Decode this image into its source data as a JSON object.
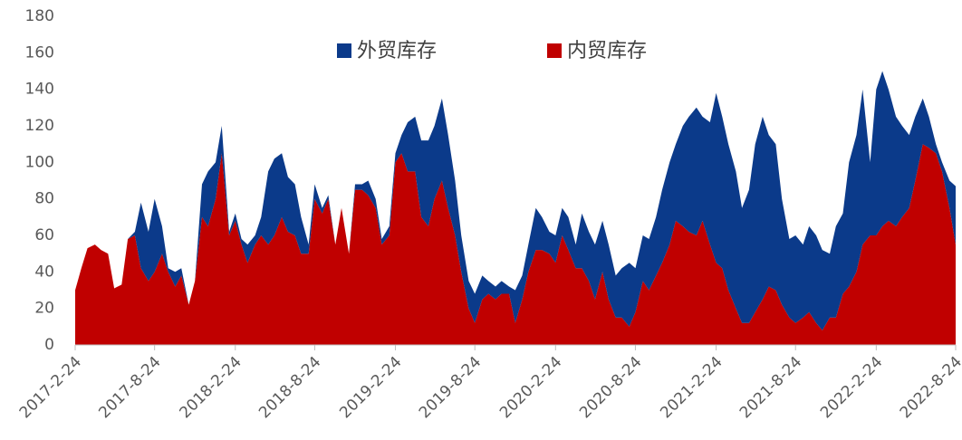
{
  "chart_data": {
    "type": "stacked_area",
    "x": [
      "2017-2-24",
      "2017-3-10",
      "2017-3-24",
      "2017-4-10",
      "2017-4-24",
      "2017-5-10",
      "2017-5-24",
      "2017-6-10",
      "2017-6-24",
      "2017-7-10",
      "2017-7-24",
      "2017-8-10",
      "2017-8-24",
      "2017-9-10",
      "2017-9-24",
      "2017-10-10",
      "2017-10-24",
      "2017-11-10",
      "2017-11-24",
      "2017-12-10",
      "2017-12-24",
      "2018-1-10",
      "2018-1-24",
      "2018-2-10",
      "2018-2-24",
      "2018-3-10",
      "2018-3-24",
      "2018-4-10",
      "2018-4-24",
      "2018-5-10",
      "2018-5-24",
      "2018-6-10",
      "2018-6-24",
      "2018-7-10",
      "2018-7-24",
      "2018-8-10",
      "2018-8-24",
      "2018-9-10",
      "2018-9-24",
      "2018-10-10",
      "2018-10-24",
      "2018-11-10",
      "2018-11-24",
      "2018-12-10",
      "2018-12-24",
      "2019-1-10",
      "2019-1-24",
      "2019-2-10",
      "2019-2-24",
      "2019-3-10",
      "2019-3-24",
      "2019-4-10",
      "2019-4-24",
      "2019-5-10",
      "2019-5-24",
      "2019-6-10",
      "2019-6-24",
      "2019-7-10",
      "2019-7-24",
      "2019-8-10",
      "2019-8-24",
      "2019-9-10",
      "2019-9-24",
      "2019-10-10",
      "2019-10-24",
      "2019-11-10",
      "2019-11-24",
      "2019-12-10",
      "2019-12-24",
      "2020-1-10",
      "2020-1-24",
      "2020-2-10",
      "2020-2-24",
      "2020-3-10",
      "2020-3-24",
      "2020-4-10",
      "2020-4-24",
      "2020-5-10",
      "2020-5-24",
      "2020-6-10",
      "2020-6-24",
      "2020-7-10",
      "2020-7-24",
      "2020-8-10",
      "2020-8-24",
      "2020-9-10",
      "2020-9-24",
      "2020-10-10",
      "2020-10-24",
      "2020-11-10",
      "2020-11-24",
      "2020-12-10",
      "2020-12-24",
      "2021-1-10",
      "2021-1-24",
      "2021-2-10",
      "2021-2-24",
      "2021-3-10",
      "2021-3-24",
      "2021-4-10",
      "2021-4-24",
      "2021-5-10",
      "2021-5-24",
      "2021-6-10",
      "2021-6-24",
      "2021-7-10",
      "2021-7-24",
      "2021-8-10",
      "2021-8-24",
      "2021-9-10",
      "2021-9-24",
      "2021-10-10",
      "2021-10-24",
      "2021-11-10",
      "2021-11-24",
      "2021-12-10",
      "2021-12-24",
      "2022-1-10",
      "2022-1-24",
      "2022-2-10",
      "2022-2-24",
      "2022-3-10",
      "2022-3-24",
      "2022-4-10",
      "2022-4-24",
      "2022-5-10",
      "2022-5-24",
      "2022-6-10",
      "2022-6-24",
      "2022-7-10",
      "2022-7-24",
      "2022-8-10",
      "2022-8-24"
    ],
    "series": [
      {
        "name": "外贸库存",
        "color": "#0b3a8a",
        "values": [
          0,
          0,
          0,
          0,
          0,
          0,
          0,
          0,
          0,
          2,
          36,
          27,
          40,
          15,
          2,
          8,
          4,
          0,
          0,
          18,
          30,
          20,
          15,
          2,
          4,
          3,
          10,
          5,
          10,
          40,
          42,
          35,
          30,
          28,
          20,
          5,
          8,
          3,
          2,
          0,
          0,
          0,
          3,
          3,
          8,
          5,
          3,
          5,
          5,
          10,
          27,
          30,
          42,
          47,
          40,
          45,
          40,
          30,
          20,
          15,
          16,
          13,
          7,
          7,
          7,
          4,
          18,
          13,
          15,
          23,
          18,
          12,
          15,
          15,
          18,
          13,
          30,
          27,
          30,
          28,
          30,
          23,
          27,
          35,
          24,
          25,
          28,
          32,
          40,
          45,
          42,
          55,
          63,
          70,
          57,
          67,
          93,
          83,
          80,
          75,
          63,
          73,
          92,
          100,
          83,
          80,
          58,
          43,
          48,
          40,
          47,
          48,
          44,
          35,
          50,
          44,
          68,
          75,
          85,
          40,
          80,
          85,
          72,
          60,
          50,
          40,
          35,
          25,
          17,
          5,
          5,
          15,
          32
        ]
      },
      {
        "name": "内贸库存",
        "color": "#c00000",
        "values": [
          30,
          42,
          53,
          55,
          52,
          50,
          31,
          33,
          58,
          60,
          42,
          35,
          40,
          50,
          40,
          32,
          38,
          22,
          35,
          70,
          65,
          80,
          105,
          60,
          68,
          55,
          45,
          55,
          60,
          55,
          60,
          70,
          62,
          60,
          50,
          50,
          80,
          72,
          80,
          55,
          75,
          50,
          85,
          85,
          82,
          75,
          55,
          60,
          100,
          105,
          95,
          95,
          70,
          65,
          80,
          90,
          75,
          60,
          40,
          20,
          12,
          25,
          28,
          25,
          28,
          28,
          12,
          25,
          40,
          52,
          52,
          50,
          45,
          60,
          52,
          42,
          42,
          35,
          25,
          40,
          25,
          15,
          15,
          10,
          18,
          35,
          30,
          38,
          45,
          55,
          68,
          65,
          62,
          60,
          68,
          55,
          45,
          42,
          30,
          20,
          12,
          12,
          18,
          25,
          32,
          30,
          22,
          15,
          12,
          15,
          18,
          12,
          8,
          15,
          15,
          28,
          32,
          40,
          55,
          60,
          60,
          65,
          68,
          65,
          70,
          75,
          90,
          110,
          108,
          105,
          95,
          75,
          55
        ]
      }
    ],
    "xlim": [
      "2017-2-24",
      "2022-8-24"
    ],
    "xticks": [
      "2017-2-24",
      "2017-8-24",
      "2018-2-24",
      "2018-8-24",
      "2019-2-24",
      "2019-8-24",
      "2020-2-24",
      "2020-8-24",
      "2021-2-24",
      "2021-8-24",
      "2022-2-24",
      "2022-8-24"
    ],
    "ylim": [
      0,
      180
    ],
    "yticks": [
      0,
      20,
      40,
      60,
      80,
      100,
      120,
      140,
      160,
      180
    ],
    "legend": "top"
  }
}
